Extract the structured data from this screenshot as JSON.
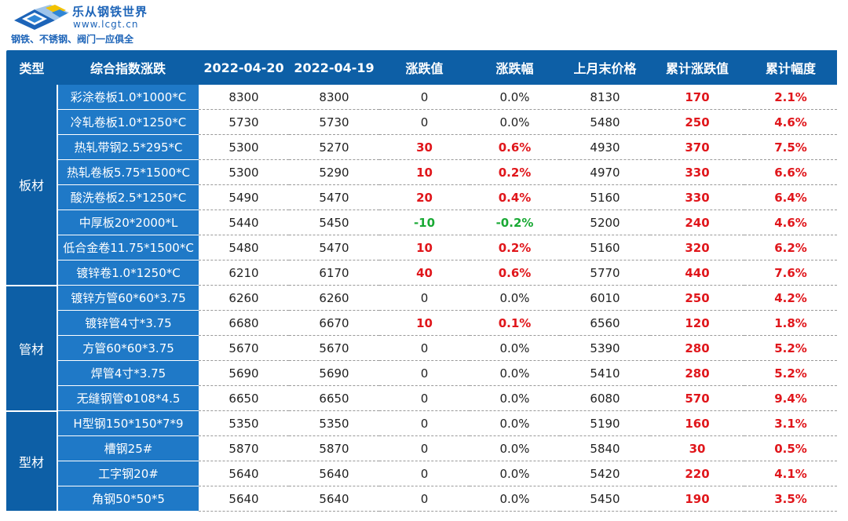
{
  "header": {
    "brand": "乐从钢铁世界",
    "url": "www.lcgt.cn",
    "slogan": "钢铁、不锈钢、阀门一应俱全",
    "colors": {
      "brand_blue": "#1d64b8",
      "header_bg": "#0d5fa6",
      "name_bg": "#1f79c7",
      "up": "#e0161b",
      "down": "#19a934"
    }
  },
  "table": {
    "columns": [
      "类型",
      "综合指数涨跌",
      "2022-04-20",
      "2022-04-19",
      "涨跌值",
      "涨跌幅",
      "上月末价格",
      "累计涨跌值",
      "累计幅度"
    ],
    "groups": [
      {
        "type": "板材",
        "rows": [
          {
            "name": "彩涂卷板1.0*1000*C",
            "d1": "8300",
            "d2": "8300",
            "chg": "0",
            "pct": "0.0%",
            "last": "8130",
            "cum": "170",
            "cumpct": "2.1%",
            "dir": "flat"
          },
          {
            "name": "冷轧卷板1.0*1250*C",
            "d1": "5730",
            "d2": "5730",
            "chg": "0",
            "pct": "0.0%",
            "last": "5480",
            "cum": "250",
            "cumpct": "4.6%",
            "dir": "flat"
          },
          {
            "name": "热轧带钢2.5*295*C",
            "d1": "5300",
            "d2": "5270",
            "chg": "30",
            "pct": "0.6%",
            "last": "4930",
            "cum": "370",
            "cumpct": "7.5%",
            "dir": "up"
          },
          {
            "name": "热轧卷板5.75*1500*C",
            "d1": "5300",
            "d2": "5290",
            "chg": "10",
            "pct": "0.2%",
            "last": "4970",
            "cum": "330",
            "cumpct": "6.6%",
            "dir": "up"
          },
          {
            "name": "酸洗卷板2.5*1250*C",
            "d1": "5490",
            "d2": "5470",
            "chg": "20",
            "pct": "0.4%",
            "last": "5160",
            "cum": "330",
            "cumpct": "6.4%",
            "dir": "up"
          },
          {
            "name": "中厚板20*2000*L",
            "d1": "5440",
            "d2": "5450",
            "chg": "-10",
            "pct": "-0.2%",
            "last": "5200",
            "cum": "240",
            "cumpct": "4.6%",
            "dir": "down"
          },
          {
            "name": "低合金卷11.75*1500*C",
            "d1": "5480",
            "d2": "5470",
            "chg": "10",
            "pct": "0.2%",
            "last": "5160",
            "cum": "320",
            "cumpct": "6.2%",
            "dir": "up"
          },
          {
            "name": "镀锌卷1.0*1250*C",
            "d1": "6210",
            "d2": "6170",
            "chg": "40",
            "pct": "0.6%",
            "last": "5770",
            "cum": "440",
            "cumpct": "7.6%",
            "dir": "up"
          }
        ]
      },
      {
        "type": "管材",
        "rows": [
          {
            "name": "镀锌方管60*60*3.75",
            "d1": "6260",
            "d2": "6260",
            "chg": "0",
            "pct": "0.0%",
            "last": "6010",
            "cum": "250",
            "cumpct": "4.2%",
            "dir": "flat"
          },
          {
            "name": "镀锌管4寸*3.75",
            "d1": "6680",
            "d2": "6670",
            "chg": "10",
            "pct": "0.1%",
            "last": "6560",
            "cum": "120",
            "cumpct": "1.8%",
            "dir": "up"
          },
          {
            "name": "方管60*60*3.75",
            "d1": "5670",
            "d2": "5670",
            "chg": "0",
            "pct": "0.0%",
            "last": "5390",
            "cum": "280",
            "cumpct": "5.2%",
            "dir": "flat"
          },
          {
            "name": "焊管4寸*3.75",
            "d1": "5690",
            "d2": "5690",
            "chg": "0",
            "pct": "0.0%",
            "last": "5410",
            "cum": "280",
            "cumpct": "5.2%",
            "dir": "flat"
          },
          {
            "name": "无缝钢管Φ108*4.5",
            "d1": "6650",
            "d2": "6650",
            "chg": "0",
            "pct": "0.0%",
            "last": "6080",
            "cum": "570",
            "cumpct": "9.4%",
            "dir": "flat"
          }
        ]
      },
      {
        "type": "型材",
        "rows": [
          {
            "name": "H型钢150*150*7*9",
            "d1": "5350",
            "d2": "5350",
            "chg": "0",
            "pct": "0.0%",
            "last": "5190",
            "cum": "160",
            "cumpct": "3.1%",
            "dir": "flat"
          },
          {
            "name": "槽钢25#",
            "d1": "5870",
            "d2": "5870",
            "chg": "0",
            "pct": "0.0%",
            "last": "5840",
            "cum": "30",
            "cumpct": "0.5%",
            "dir": "flat"
          },
          {
            "name": "工字钢20#",
            "d1": "5640",
            "d2": "5640",
            "chg": "0",
            "pct": "0.0%",
            "last": "5420",
            "cum": "220",
            "cumpct": "4.1%",
            "dir": "flat"
          },
          {
            "name": "角钢50*50*5",
            "d1": "5640",
            "d2": "5640",
            "chg": "0",
            "pct": "0.0%",
            "last": "5450",
            "cum": "190",
            "cumpct": "3.5%",
            "dir": "flat"
          }
        ]
      }
    ]
  }
}
